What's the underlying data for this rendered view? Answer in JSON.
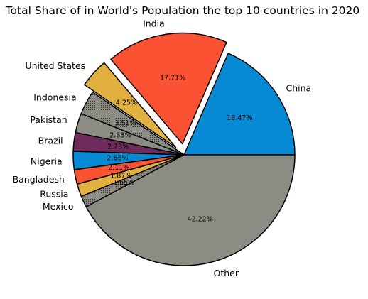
{
  "chart_data": {
    "type": "pie",
    "title": "Total Share of in World's Population the top 10 countries in 2020",
    "start_angle_deg": 0,
    "direction": "counterclockwise",
    "slices": [
      {
        "label": "China",
        "value": 18.47,
        "pct_label": "18.47%",
        "color": "#068ad4",
        "hatch": false,
        "explode": 0
      },
      {
        "label": "India",
        "value": 17.71,
        "pct_label": "17.71%",
        "color": "#fb5233",
        "hatch": false,
        "explode": 0.1
      },
      {
        "label": "United States",
        "value": 4.25,
        "pct_label": "4.25%",
        "color": "#e2af41",
        "hatch": false,
        "explode": 0.1
      },
      {
        "label": "Indonesia",
        "value": 3.51,
        "pct_label": "3.51%",
        "color": "#8c8c84",
        "hatch": true,
        "explode": 0
      },
      {
        "label": "Pakistan",
        "value": 2.83,
        "pct_label": "2.83%",
        "color": "#8c8c84",
        "hatch": false,
        "explode": 0
      },
      {
        "label": "Brazil",
        "value": 2.73,
        "pct_label": "2.73%",
        "color": "#6e2c5c",
        "hatch": false,
        "explode": 0
      },
      {
        "label": "Nigeria",
        "value": 2.65,
        "pct_label": "2.65%",
        "color": "#068ad4",
        "hatch": false,
        "explode": 0
      },
      {
        "label": "Bangladesh",
        "value": 2.11,
        "pct_label": "2.11%",
        "color": "#fb5233",
        "hatch": false,
        "explode": 0
      },
      {
        "label": "Russia",
        "value": 1.87,
        "pct_label": "1.87%",
        "color": "#e2af41",
        "hatch": false,
        "explode": 0
      },
      {
        "label": "Mexico",
        "value": 1.65,
        "pct_label": "1.65%",
        "color": "#8c8c84",
        "hatch": true,
        "explode": 0
      },
      {
        "label": "Other",
        "value": 42.22,
        "pct_label": "42.22%",
        "color": "#8c8c84",
        "hatch": false,
        "explode": 0
      }
    ]
  }
}
